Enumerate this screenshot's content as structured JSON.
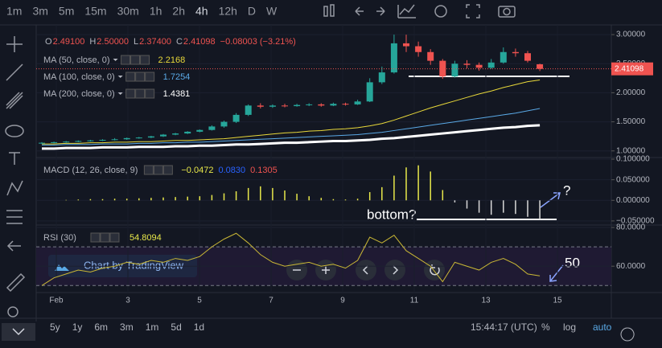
{
  "toolbar": {
    "intervals": [
      "1m",
      "3m",
      "5m",
      "15m",
      "30m",
      "1h",
      "2h",
      "4h",
      "12h",
      "D",
      "W"
    ]
  },
  "legend": {
    "ohlc": [
      {
        "key": "O",
        "value": "2.49100"
      },
      {
        "key": "H",
        "value": "2.50000"
      },
      {
        "key": "L",
        "value": "2.37400"
      },
      {
        "key": "C",
        "value": "2.41098"
      }
    ],
    "change": "−0.08003 (−3.21%)"
  },
  "price_panel": {
    "ylim": [
      0.9,
      3.07
    ],
    "yticks": [
      {
        "value": 1.0,
        "label": "1.00000"
      },
      {
        "value": 1.5,
        "label": "1.50000"
      },
      {
        "value": 2.0,
        "label": "2.00000"
      },
      {
        "value": 2.5,
        "label": "2.50000"
      },
      {
        "value": 3.0,
        "label": "3.00000"
      }
    ],
    "last_price": {
      "value": 2.41098,
      "label": "2.41098"
    },
    "candles": [
      [
        1.13,
        1.15,
        1.12,
        1.14
      ],
      [
        1.14,
        1.16,
        1.13,
        1.15
      ],
      [
        1.15,
        1.17,
        1.14,
        1.16
      ],
      [
        1.16,
        1.18,
        1.15,
        1.17
      ],
      [
        1.17,
        1.19,
        1.16,
        1.18
      ],
      [
        1.18,
        1.2,
        1.17,
        1.19
      ],
      [
        1.19,
        1.22,
        1.18,
        1.2
      ],
      [
        1.2,
        1.23,
        1.19,
        1.22
      ],
      [
        1.22,
        1.24,
        1.21,
        1.23
      ],
      [
        1.23,
        1.26,
        1.22,
        1.25
      ],
      [
        1.25,
        1.29,
        1.24,
        1.28
      ],
      [
        1.28,
        1.31,
        1.27,
        1.3
      ],
      [
        1.3,
        1.34,
        1.29,
        1.33
      ],
      [
        1.33,
        1.37,
        1.32,
        1.36
      ],
      [
        1.36,
        1.44,
        1.35,
        1.42
      ],
      [
        1.42,
        1.52,
        1.4,
        1.5
      ],
      [
        1.5,
        1.65,
        1.48,
        1.62
      ],
      [
        1.62,
        1.8,
        1.6,
        1.78
      ],
      [
        1.78,
        1.82,
        1.73,
        1.76
      ],
      [
        1.76,
        1.8,
        1.74,
        1.78
      ],
      [
        1.78,
        1.81,
        1.75,
        1.77
      ],
      [
        1.77,
        1.81,
        1.76,
        1.79
      ],
      [
        1.79,
        1.82,
        1.77,
        1.8
      ],
      [
        1.8,
        1.82,
        1.76,
        1.78
      ],
      [
        1.78,
        1.83,
        1.77,
        1.81
      ],
      [
        1.81,
        1.83,
        1.78,
        1.8
      ],
      [
        1.8,
        1.88,
        1.79,
        1.85
      ],
      [
        1.85,
        2.25,
        1.84,
        2.18
      ],
      [
        2.18,
        2.45,
        2.15,
        2.35
      ],
      [
        2.35,
        3.0,
        2.33,
        2.85
      ],
      [
        2.85,
        3.0,
        2.7,
        2.8
      ],
      [
        2.8,
        2.88,
        2.62,
        2.7
      ],
      [
        2.7,
        2.75,
        2.48,
        2.55
      ],
      [
        2.55,
        2.58,
        2.24,
        2.28
      ],
      [
        2.28,
        2.55,
        2.26,
        2.5
      ],
      [
        2.5,
        2.56,
        2.42,
        2.48
      ],
      [
        2.48,
        2.52,
        2.38,
        2.43
      ],
      [
        2.43,
        2.58,
        2.41,
        2.52
      ],
      [
        2.52,
        2.78,
        2.5,
        2.7
      ],
      [
        2.7,
        2.76,
        2.62,
        2.68
      ],
      [
        2.68,
        2.72,
        2.52,
        2.55
      ],
      [
        2.49,
        2.5,
        2.374,
        2.41098
      ]
    ],
    "indicators": [
      {
        "label": "MA (50, close, 0)",
        "value": "2.2168",
        "color": "#e8d83a",
        "width": 1,
        "values": [
          1.12,
          1.12,
          1.13,
          1.13,
          1.14,
          1.14,
          1.15,
          1.15,
          1.16,
          1.16,
          1.17,
          1.18,
          1.18,
          1.19,
          1.2,
          1.21,
          1.23,
          1.25,
          1.27,
          1.29,
          1.31,
          1.32,
          1.34,
          1.35,
          1.37,
          1.38,
          1.4,
          1.43,
          1.47,
          1.53,
          1.6,
          1.67,
          1.74,
          1.8,
          1.86,
          1.92,
          1.98,
          2.03,
          2.09,
          2.14,
          2.19,
          2.22
        ]
      },
      {
        "label": "MA (100, close, 0)",
        "value": "1.7254",
        "color": "#5aa9e6",
        "width": 1,
        "values": [
          1.1,
          1.1,
          1.11,
          1.11,
          1.11,
          1.12,
          1.12,
          1.12,
          1.13,
          1.13,
          1.14,
          1.14,
          1.15,
          1.15,
          1.16,
          1.17,
          1.18,
          1.19,
          1.2,
          1.21,
          1.22,
          1.23,
          1.24,
          1.25,
          1.26,
          1.27,
          1.28,
          1.3,
          1.32,
          1.35,
          1.38,
          1.41,
          1.44,
          1.47,
          1.5,
          1.53,
          1.56,
          1.59,
          1.62,
          1.65,
          1.69,
          1.73
        ]
      },
      {
        "label": "MA (200, close, 0)",
        "value": "1.4381",
        "color": "#ffffff",
        "width": 3,
        "values": [
          1.04,
          1.04,
          1.05,
          1.05,
          1.05,
          1.06,
          1.06,
          1.06,
          1.07,
          1.07,
          1.07,
          1.08,
          1.08,
          1.09,
          1.09,
          1.1,
          1.11,
          1.11,
          1.12,
          1.13,
          1.14,
          1.14,
          1.15,
          1.16,
          1.17,
          1.17,
          1.18,
          1.19,
          1.21,
          1.22,
          1.24,
          1.26,
          1.28,
          1.3,
          1.32,
          1.34,
          1.36,
          1.38,
          1.4,
          1.41,
          1.43,
          1.44
        ]
      }
    ]
  },
  "macd": {
    "label": "MACD (12, 26, close, 9)",
    "readouts": [
      {
        "value": "−0.0472",
        "color": "#e8e84a"
      },
      {
        "value": "0.0830",
        "color": "#2962ff"
      },
      {
        "value": "0.1305",
        "color": "#ef5350"
      }
    ],
    "ylim": [
      -0.058,
      0.102
    ],
    "yticks": [
      {
        "value": 0.1,
        "label": "0.100000"
      },
      {
        "value": 0.05,
        "label": "0.050000"
      },
      {
        "value": 0,
        "label": "0.000000"
      },
      {
        "value": -0.05,
        "label": "−0.050000"
      }
    ],
    "histogram": [
      0,
      0,
      0.001,
      0.002,
      0.003,
      0.003,
      0.004,
      0.004,
      0.005,
      0.006,
      0.007,
      0.008,
      0.009,
      0.01,
      0.013,
      0.017,
      0.022,
      0.03,
      0.034,
      0.03,
      0.024,
      0.016,
      0.01,
      0.006,
      0.003,
      0.002,
      0.004,
      0.02,
      0.032,
      0.06,
      0.08,
      0.085,
      0.07,
      0.025,
      -0.005,
      -0.02,
      -0.03,
      -0.035,
      -0.03,
      -0.033,
      -0.04,
      -0.047
    ]
  },
  "rsi": {
    "label": "RSI (30)",
    "value": "54.8094",
    "ylim": [
      46.8,
      80.85
    ],
    "yticks": [
      {
        "value": 80,
        "label": "80.0000"
      },
      {
        "value": 60,
        "label": "60.0000"
      }
    ],
    "bands": [
      70,
      50
    ],
    "values": [
      50,
      54,
      56,
      58,
      57,
      59,
      60,
      62,
      61,
      63,
      62,
      64,
      63,
      65,
      70,
      74,
      77,
      72,
      66,
      62,
      60,
      61,
      62,
      60,
      61,
      59,
      63,
      75,
      72,
      76,
      68,
      64,
      60,
      52,
      62,
      60,
      58,
      62,
      64,
      61,
      56,
      55
    ]
  },
  "xaxis": {
    "ticks": [
      {
        "value": 1,
        "label": "Feb"
      },
      3,
      5,
      7,
      9,
      11,
      13,
      15
    ]
  },
  "annotations": [
    "bottom?",
    "?",
    "50"
  ],
  "overlay": "Chart by TradingView",
  "bottom_bar": {
    "ranges": [
      "5y",
      "1y",
      "6m",
      "3m",
      "1m",
      "5d",
      "1d"
    ],
    "time": "15:44:17 (UTC)",
    "options": [
      "%",
      "log",
      "auto"
    ]
  }
}
